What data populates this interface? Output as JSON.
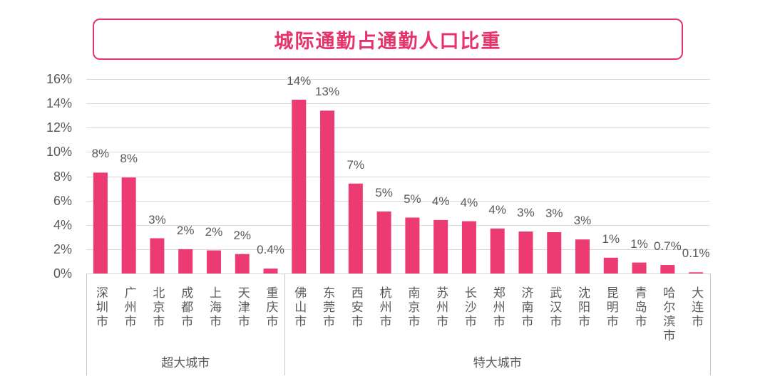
{
  "chart_data": {
    "type": "bar",
    "title": "城际通勤占通勤人口比重",
    "categories": [
      "深圳市",
      "广州市",
      "北京市",
      "成都市",
      "上海市",
      "天津市",
      "重庆市",
      "佛山市",
      "东莞市",
      "西安市",
      "杭州市",
      "南京市",
      "苏州市",
      "长沙市",
      "郑州市",
      "济南市",
      "武汉市",
      "沈阳市",
      "昆明市",
      "青岛市",
      "哈尔滨市",
      "大连市"
    ],
    "values": [
      8.3,
      7.9,
      2.9,
      2.0,
      1.9,
      1.6,
      0.4,
      14.3,
      13.4,
      7.4,
      5.1,
      4.6,
      4.4,
      4.3,
      3.7,
      3.45,
      3.4,
      2.8,
      1.3,
      0.9,
      0.7,
      0.1
    ],
    "data_labels": [
      "8%",
      "8%",
      "3%",
      "2%",
      "2%",
      "2%",
      "0.4%",
      "14%",
      "13%",
      "7%",
      "5%",
      "5%",
      "4%",
      "4%",
      "4%",
      "3%",
      "3%",
      "3%",
      "1%",
      "1%",
      "0.7%",
      "0.1%"
    ],
    "groups": [
      {
        "name": "超大城市",
        "count": 7
      },
      {
        "name": "特大城市",
        "count": 15
      }
    ],
    "ylim": [
      0,
      16
    ],
    "yticks": [
      0,
      2,
      4,
      6,
      8,
      10,
      12,
      14,
      16
    ],
    "ytick_labels": [
      "0%",
      "2%",
      "4%",
      "6%",
      "8%",
      "10%",
      "12%",
      "14%",
      "16%"
    ],
    "grid": true
  },
  "colors": {
    "bar": "#EC3A72",
    "title": "#E6336B",
    "axis_text": "#595959",
    "grid": "#D9D9D9",
    "separator": "#C8C8C8"
  }
}
